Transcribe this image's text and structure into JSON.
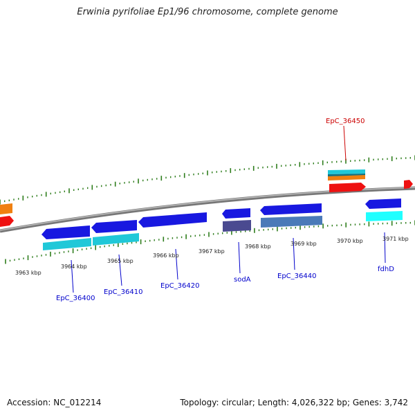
{
  "title": "Erwinia pyrifoliae Ep1/96 chromosome, complete genome",
  "footer": {
    "accession": "Accession: NC_012214",
    "summary": "Topology: circular; Length: 4,026,322 bp; Genes: 3,742"
  },
  "colors": {
    "backbone": "#888888",
    "tick": "#2e7d1c",
    "label_link": "#0000cc",
    "highlight_link": "#cc0000",
    "gene_blue": "#1818e0",
    "gene_cyan": "#20c8d8",
    "gene_red": "#ee1111",
    "gene_orange": "#f08010",
    "gene_slate": "#4a4a90",
    "gene_steel": "#4a7ab8"
  },
  "scale_labels": [
    {
      "text": "3963 kbp"
    },
    {
      "text": "3964 kbp"
    },
    {
      "text": "3965 kbp"
    },
    {
      "text": "3966 kbp"
    },
    {
      "text": "3967 kbp"
    },
    {
      "text": "3968 kbp"
    },
    {
      "text": "3969 kbp"
    },
    {
      "text": "3970 kbp"
    },
    {
      "text": "3971 kbp"
    }
  ],
  "gene_labels": [
    {
      "text": "EpC_36400",
      "highlight": false
    },
    {
      "text": "EpC_36410",
      "highlight": false
    },
    {
      "text": "EpC_36420",
      "highlight": false
    },
    {
      "text": "sodA",
      "highlight": false
    },
    {
      "text": "EpC_36440",
      "highlight": false
    },
    {
      "text": "fdhD",
      "highlight": false
    },
    {
      "text": "EpC_36450",
      "highlight": true
    }
  ]
}
